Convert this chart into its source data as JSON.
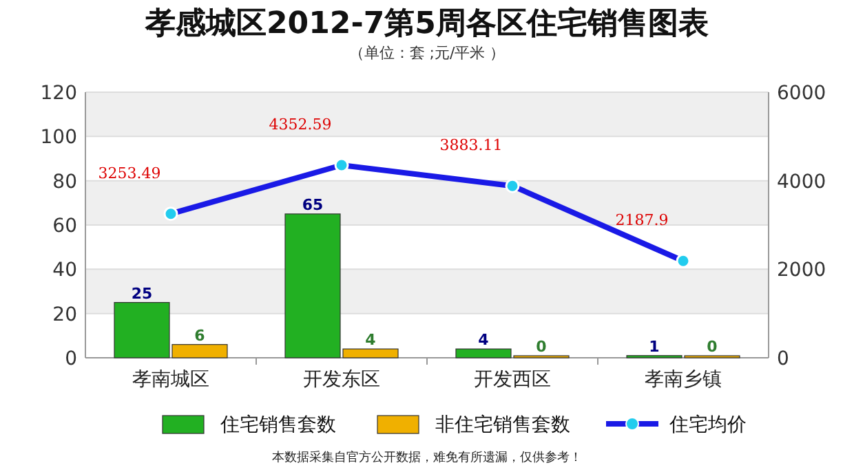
{
  "chart_data": {
    "type": "bar",
    "title": "孝感城区2012-7第5周各区住宅销售图表",
    "subtitle": "（单位：套 ;元/平米 ）",
    "categories": [
      "孝南城区",
      "开发东区",
      "开发西区",
      "孝南乡镇"
    ],
    "series": [
      {
        "name": "住宅销售套数",
        "color": "#22b022",
        "values": [
          25,
          65,
          4,
          1
        ]
      },
      {
        "name": "非住宅销售套数",
        "color": "#f0b000",
        "values": [
          6,
          4,
          0,
          0
        ]
      },
      {
        "name": "住宅均价",
        "type": "line",
        "axis": "y2",
        "color": "#1a1ae6",
        "marker": "circle",
        "values": [
          3253.49,
          4352.59,
          3883.11,
          2187.9
        ]
      }
    ],
    "ylim": [
      0,
      120
    ],
    "yticks": [
      0,
      20,
      40,
      60,
      80,
      100,
      120
    ],
    "y2lim": [
      0,
      6000
    ],
    "y2ticks": [
      0,
      2000,
      4000,
      6000
    ],
    "grid": "y",
    "legend": "bottom",
    "data_labels": true,
    "annotations": [
      "本数据采集自官方公开数据，难免有所遗漏，仅供参考！"
    ]
  }
}
